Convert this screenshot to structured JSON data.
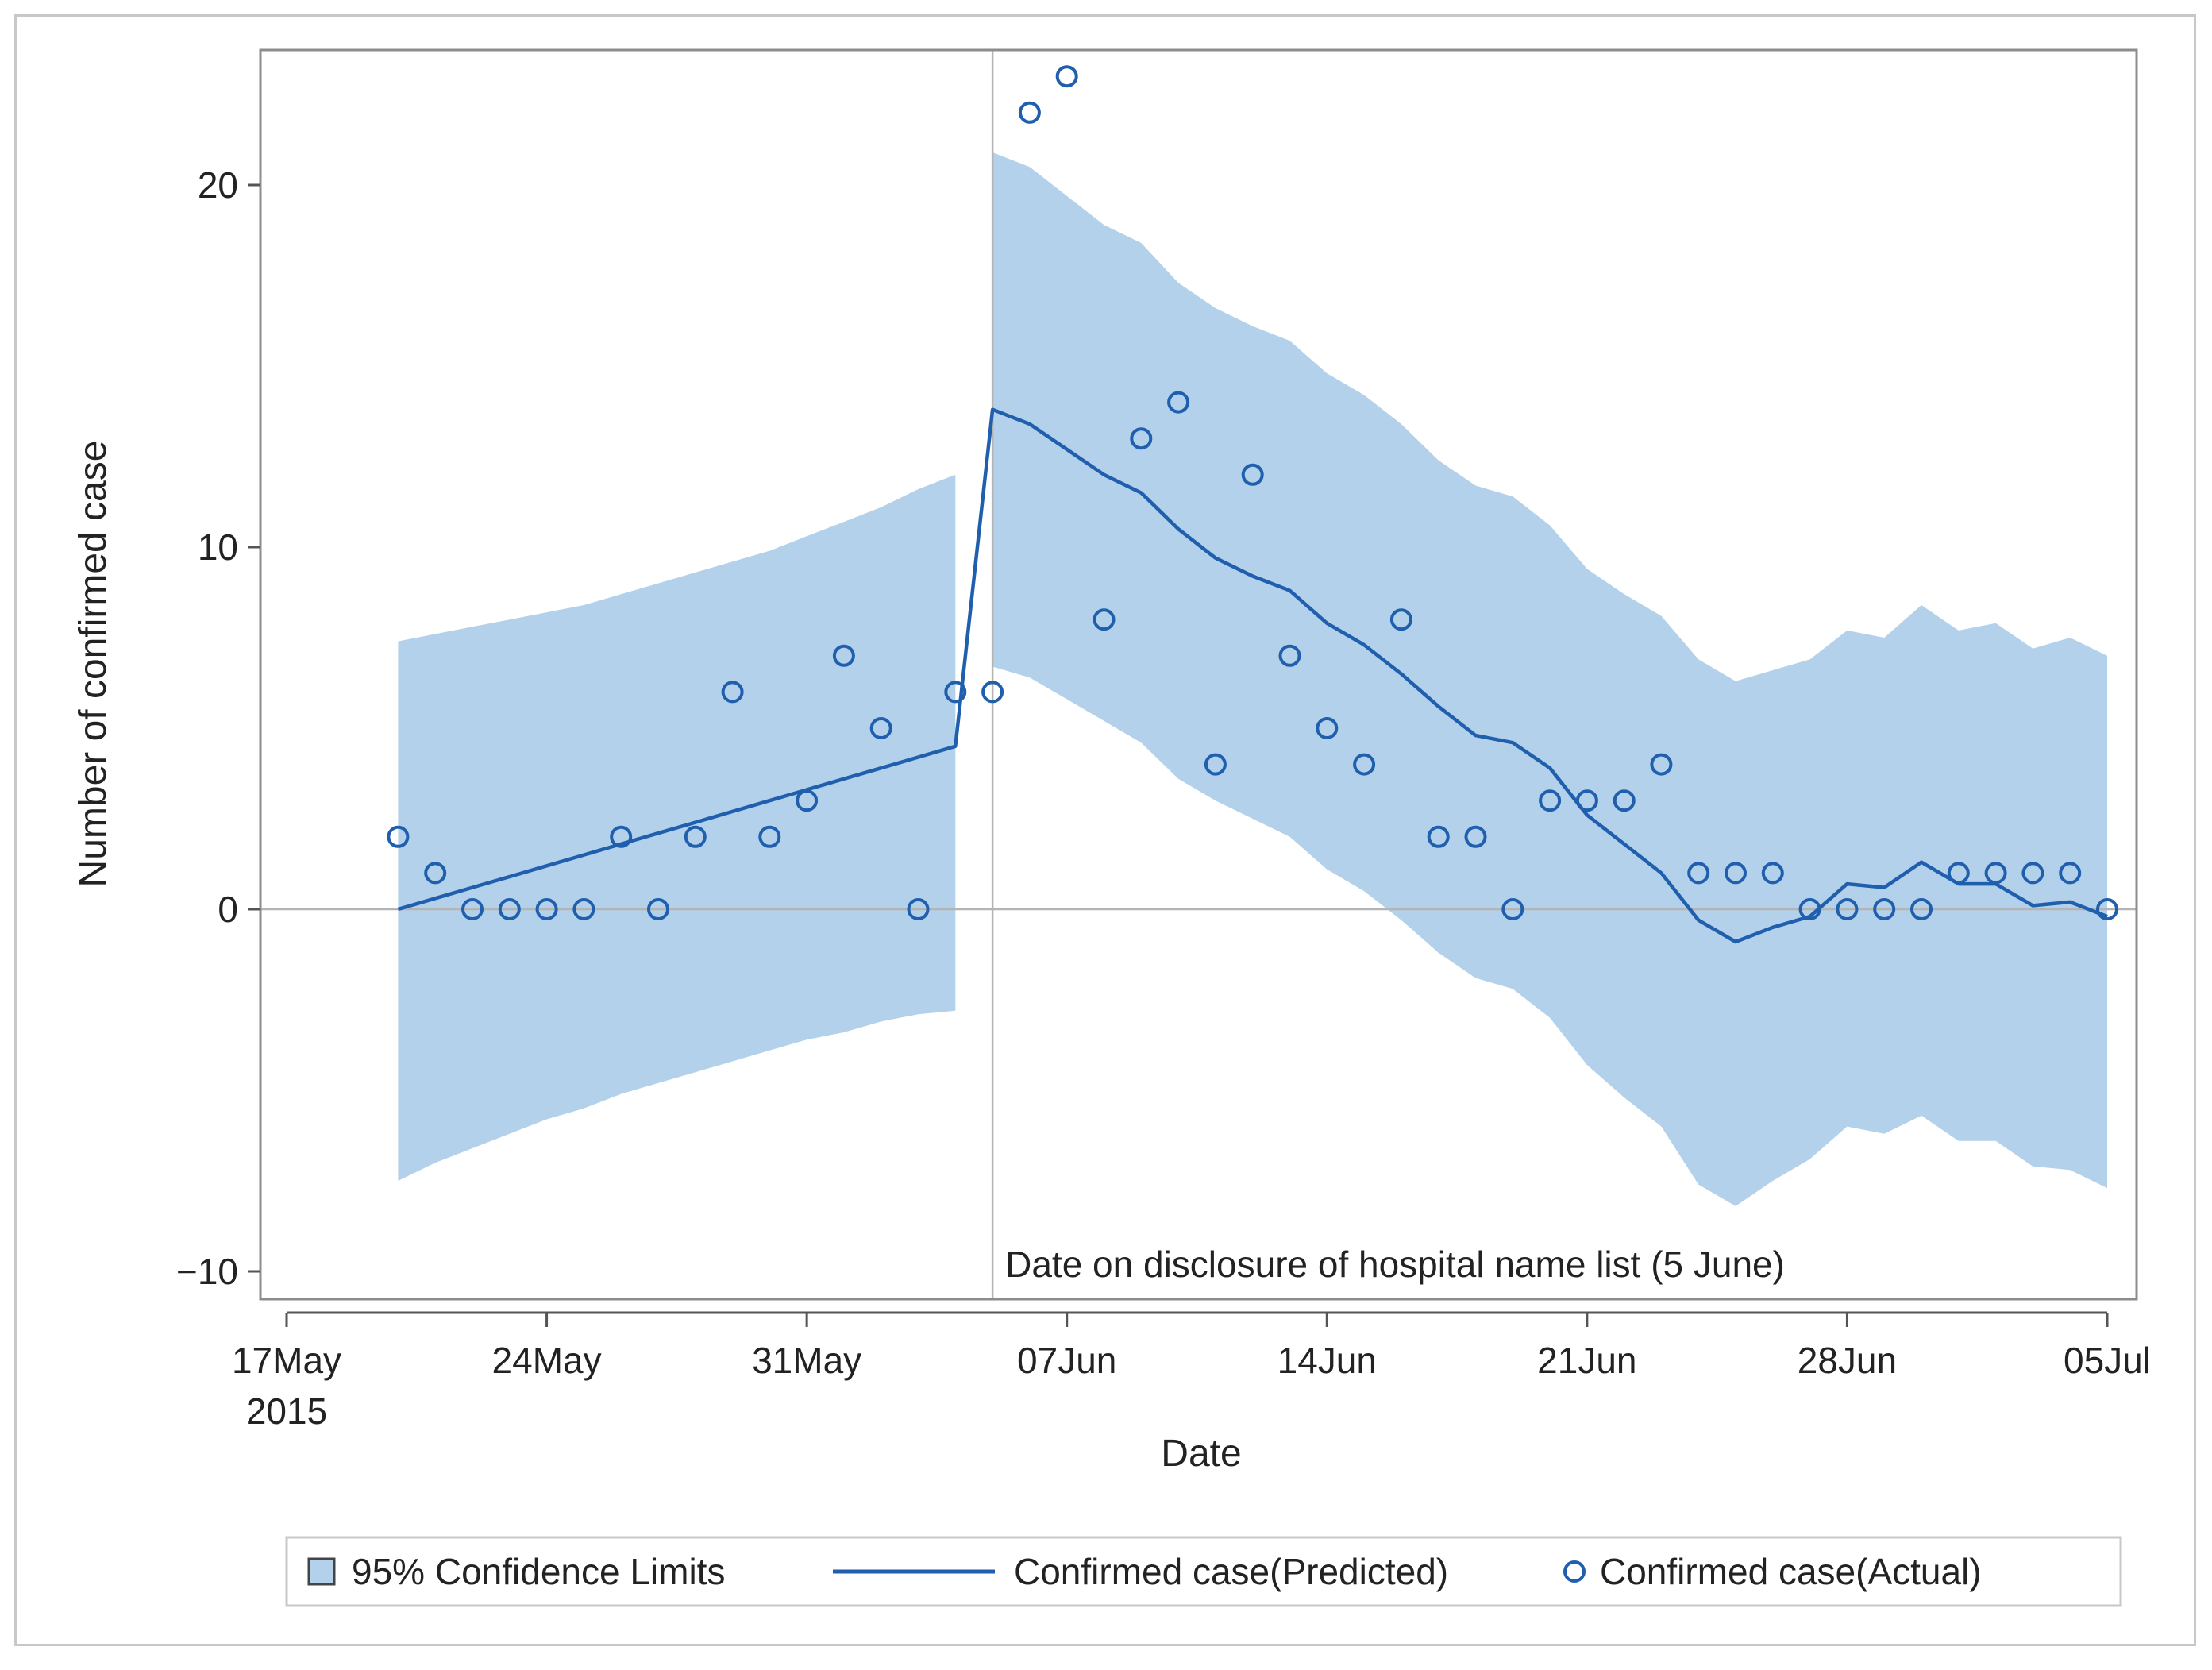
{
  "chart_data": {
    "type": "line",
    "xlabel": "Date",
    "ylabel": "Number of confirmed case",
    "ylim": [
      -10,
      24
    ],
    "y_ticks": [
      -10,
      0,
      10,
      20
    ],
    "xlim": [
      "2015-05-17",
      "2015-07-05"
    ],
    "x_ticks": [
      {
        "date": "2015-05-17",
        "label": "17May",
        "sublabel": "2015"
      },
      {
        "date": "2015-05-24",
        "label": "24May"
      },
      {
        "date": "2015-05-31",
        "label": "31May"
      },
      {
        "date": "2015-06-07",
        "label": "07Jun"
      },
      {
        "date": "2015-06-14",
        "label": "14Jun"
      },
      {
        "date": "2015-06-21",
        "label": "21Jun"
      },
      {
        "date": "2015-06-28",
        "label": "28Jun"
      },
      {
        "date": "2015-07-05",
        "label": "05Jul"
      }
    ],
    "reference_line": {
      "x": "2015-06-05",
      "label": "Date on disclosure of hospital name list (5 June)"
    },
    "zero_line": 0,
    "start_date": "2015-05-20",
    "colors": {
      "band": "#b3d1ea",
      "line": "#1f5fae",
      "marker": "#1f5fae",
      "ref": "#b4b4b4",
      "axis": "#8c8c8c"
    },
    "series": [
      {
        "name": "95% Confidence Limits",
        "kind": "band",
        "lower": [
          -7.5,
          -7.0,
          -6.6,
          -6.2,
          -5.8,
          -5.5,
          -5.1,
          -4.8,
          -4.5,
          -4.2,
          -3.9,
          -3.6,
          -3.4,
          -3.1,
          -2.9,
          -2.8,
          6.7,
          6.4,
          5.8,
          5.2,
          4.6,
          3.6,
          3.0,
          2.5,
          2.0,
          1.1,
          0.5,
          -0.3,
          -1.2,
          -1.9,
          -2.2,
          -3.0,
          -4.3,
          -5.2,
          -6.0,
          -7.6,
          -8.2,
          -7.5,
          -6.9,
          -6.0,
          -6.2,
          -5.7,
          -6.4,
          -6.4,
          -7.1,
          -7.2,
          -7.7
        ],
        "upper": [
          7.4,
          7.6,
          7.8,
          8.0,
          8.2,
          8.4,
          8.7,
          9.0,
          9.3,
          9.6,
          9.9,
          10.3,
          10.7,
          11.1,
          11.6,
          12.0,
          20.9,
          20.5,
          19.7,
          18.9,
          18.4,
          17.3,
          16.6,
          16.1,
          15.7,
          14.8,
          14.2,
          13.4,
          12.4,
          11.7,
          11.4,
          10.6,
          9.4,
          8.7,
          8.1,
          6.9,
          6.3,
          6.6,
          6.9,
          7.7,
          7.5,
          8.4,
          7.7,
          7.9,
          7.2,
          7.5,
          7.0
        ]
      },
      {
        "name": "Confirmed case(Predicted)",
        "kind": "line",
        "values": [
          0,
          0.3,
          0.6,
          0.9,
          1.2,
          1.5,
          1.8,
          2.1,
          2.4,
          2.7,
          3.0,
          3.3,
          3.6,
          3.9,
          4.2,
          4.5,
          13.8,
          13.4,
          12.7,
          12.0,
          11.5,
          10.5,
          9.7,
          9.2,
          8.8,
          7.9,
          7.3,
          6.5,
          5.6,
          4.8,
          4.6,
          3.9,
          2.6,
          1.8,
          1.0,
          -0.3,
          -0.9,
          -0.5,
          -0.2,
          0.7,
          0.6,
          1.3,
          0.7,
          0.7,
          0.1,
          0.2,
          -0.2
        ]
      },
      {
        "name": "Confirmed case(Actual)",
        "kind": "scatter",
        "values": [
          2,
          1,
          0,
          0,
          0,
          0,
          2,
          0,
          2,
          6,
          2,
          3,
          7,
          5,
          0,
          6,
          6,
          22,
          23,
          8,
          13,
          14,
          4,
          12,
          7,
          5,
          4,
          8,
          2,
          2,
          0,
          3,
          3,
          3,
          4,
          1,
          1,
          1,
          0,
          0,
          0,
          0,
          1,
          1,
          1,
          1,
          0
        ]
      }
    ]
  },
  "legend": {
    "band_label": "95% Confidence Limits",
    "line_label": "Confirmed case(Predicted)",
    "marker_label": "Confirmed case(Actual)"
  }
}
